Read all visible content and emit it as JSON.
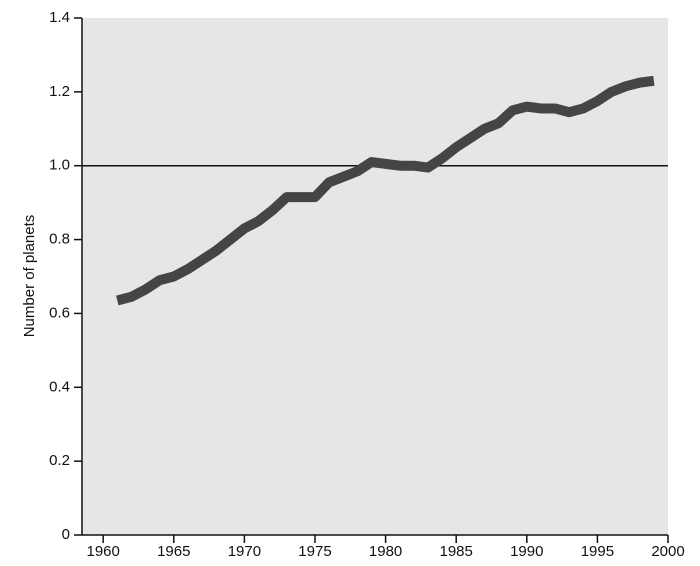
{
  "chart_data": {
    "type": "line",
    "y_label": "Number of planets",
    "x": [
      1961,
      1962,
      1963,
      1964,
      1965,
      1966,
      1967,
      1968,
      1969,
      1970,
      1971,
      1972,
      1973,
      1974,
      1975,
      1976,
      1977,
      1978,
      1979,
      1980,
      1981,
      1982,
      1983,
      1984,
      1985,
      1986,
      1987,
      1988,
      1989,
      1990,
      1991,
      1992,
      1993,
      1994,
      1995,
      1996,
      1997,
      1998,
      1999
    ],
    "values": [
      0.635,
      0.645,
      0.665,
      0.69,
      0.7,
      0.72,
      0.745,
      0.77,
      0.8,
      0.83,
      0.85,
      0.88,
      0.915,
      0.915,
      0.915,
      0.955,
      0.97,
      0.985,
      1.01,
      1.005,
      1.0,
      1.0,
      0.995,
      1.02,
      1.05,
      1.075,
      1.1,
      1.115,
      1.15,
      1.16,
      1.155,
      1.155,
      1.145,
      1.155,
      1.175,
      1.2,
      1.215,
      1.225,
      1.23
    ],
    "color": "#454545",
    "reference_line": 1.0,
    "xlim": [
      1958.5,
      2000
    ],
    "xticks": [
      1960,
      1965,
      1970,
      1975,
      1980,
      1985,
      1990,
      1995,
      2000
    ],
    "ylim": [
      0,
      1.4
    ],
    "yticks": [
      0,
      0.2,
      0.4,
      0.6,
      0.8,
      {
        "value": 1.0,
        "label": "1.0"
      },
      1.2,
      1.4
    ]
  }
}
